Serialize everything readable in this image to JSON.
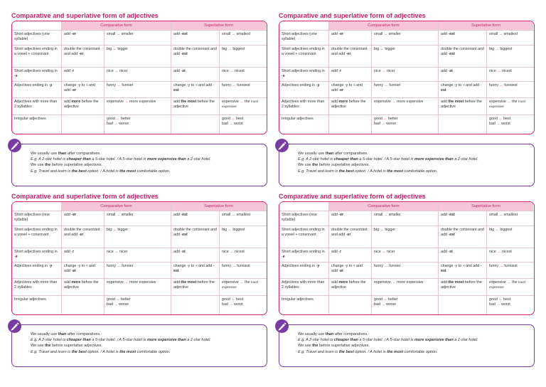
{
  "title": "Comparative and superlative form of adjectives",
  "table": {
    "headers": [
      "Comparative form",
      "Superlative form"
    ],
    "rows": [
      {
        "category": "Short adjectives (one syllable)",
        "comp_rule": "add -er",
        "comp_ex": "small → smaller",
        "sup_rule": "add -est",
        "sup_ex": "small → smallest"
      },
      {
        "category": "Short adjectives ending in a vowel + consonant",
        "comp_rule": "double the consonant and add -er",
        "comp_ex": "big → bigger",
        "sup_rule": "double the consonant and add -est",
        "sup_ex": "big → biggest"
      },
      {
        "category": "Short adjectives ending in -e",
        "comp_rule": "add -r",
        "comp_ex": "nice → nicer",
        "sup_rule": "add -st",
        "sup_ex": "nice → nicest"
      },
      {
        "category": "Adjectives ending in -y",
        "comp_rule": "change -y to -i and add -er",
        "comp_ex": "funny → funnier",
        "sup_rule": "change -y to -i and add -est",
        "sup_ex": "funny → funniest"
      },
      {
        "category": "Adjectives with more than 2 syllables",
        "comp_rule": "add more before the adjective",
        "comp_ex": "expensive → more expensive",
        "sup_rule": "add the most before the adjective",
        "sup_ex": "expensive → the most expensive"
      },
      {
        "category": "Irregular adjectives",
        "comp_rule": "",
        "comp_ex": "good → better bad → worse",
        "sup_rule": "",
        "sup_ex": "good → best bad → worst"
      }
    ]
  },
  "note": {
    "icon": "pen-icon",
    "lines": [
      "We usually use than after comparatives.",
      "E.g. A 2-star hotel is cheaper than a 5-star hotel. / A 5-star hotel is more expensive than a 2-star hotel.",
      "We use the before superlative adjectives.",
      "E.g. Travel and learn is the best option. / A hotel is the most comfortable option."
    ]
  },
  "colors": {
    "accent": "#d9236f",
    "header_fill": "#f6c6d8",
    "note_border": "#7a3aa3"
  }
}
